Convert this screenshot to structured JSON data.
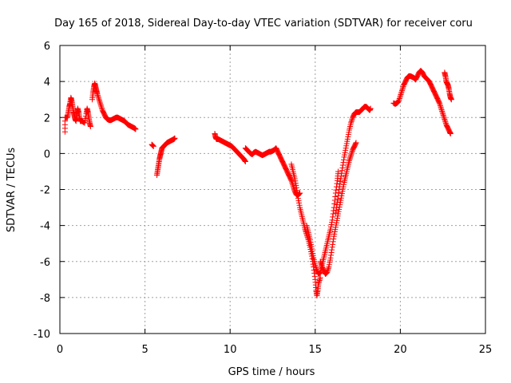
{
  "chart_data": {
    "type": "scatter",
    "title": "Day 165 of 2018, Sidereal Day-to-day VTEC variation (SDTVAR) for receiver coru",
    "xlabel": "GPS time / hours",
    "ylabel": "SDTVAR / TECUs",
    "xlim": [
      0,
      25
    ],
    "ylim": [
      -10,
      6
    ],
    "x_ticks": [
      0,
      5,
      10,
      15,
      20,
      25
    ],
    "y_ticks": [
      -10,
      -8,
      -6,
      -4,
      -2,
      0,
      2,
      4,
      6
    ],
    "x_tick_labels": [
      "0",
      "5",
      "10",
      "15",
      "20",
      "25"
    ],
    "y_tick_labels": [
      "-10",
      "-8",
      "-6",
      "-4",
      "-2",
      "0",
      "2",
      "4",
      "6"
    ],
    "grid": true,
    "legend": "none",
    "marker": "plus",
    "color": "#ff0000",
    "series": [
      {
        "segments": [
          [
            [
              0.3,
              1.2
            ],
            [
              0.3,
              2.0
            ],
            [
              0.45,
              2.0
            ],
            [
              0.5,
              2.3
            ],
            [
              0.55,
              2.6
            ],
            [
              0.6,
              2.8
            ],
            [
              0.65,
              3.1
            ],
            [
              0.7,
              2.9
            ],
            [
              0.75,
              2.6
            ],
            [
              0.8,
              2.3
            ],
            [
              0.85,
              2.1
            ],
            [
              0.9,
              1.9
            ],
            [
              0.95,
              1.8
            ],
            [
              1.0,
              2.2
            ],
            [
              1.05,
              2.5
            ],
            [
              1.1,
              2.3
            ],
            [
              1.15,
              2.0
            ],
            [
              1.2,
              1.8
            ],
            [
              1.3,
              1.8
            ],
            [
              1.45,
              1.7
            ],
            [
              1.55,
              2.2
            ],
            [
              1.6,
              2.5
            ],
            [
              1.65,
              2.3
            ],
            [
              1.7,
              2.0
            ],
            [
              1.75,
              1.7
            ],
            [
              1.8,
              1.5
            ]
          ],
          [
            [
              1.9,
              3.0
            ],
            [
              1.95,
              3.4
            ],
            [
              2.0,
              3.7
            ],
            [
              2.05,
              3.9
            ],
            [
              2.1,
              3.7
            ],
            [
              2.15,
              3.5
            ],
            [
              2.2,
              3.3
            ],
            [
              2.3,
              3.0
            ],
            [
              2.4,
              2.7
            ],
            [
              2.5,
              2.4
            ],
            [
              2.6,
              2.2
            ],
            [
              2.7,
              2.0
            ],
            [
              2.8,
              1.9
            ],
            [
              2.9,
              1.85
            ],
            [
              3.0,
              1.85
            ],
            [
              3.1,
              1.9
            ],
            [
              3.2,
              1.95
            ],
            [
              3.3,
              2.0
            ],
            [
              3.4,
              2.0
            ],
            [
              3.5,
              1.95
            ],
            [
              3.6,
              1.9
            ],
            [
              3.7,
              1.85
            ],
            [
              3.8,
              1.8
            ],
            [
              3.9,
              1.7
            ],
            [
              4.0,
              1.6
            ],
            [
              4.1,
              1.55
            ],
            [
              4.2,
              1.5
            ],
            [
              4.3,
              1.45
            ],
            [
              4.4,
              1.4
            ],
            [
              4.45,
              1.35
            ]
          ],
          [
            [
              5.4,
              0.5
            ],
            [
              5.5,
              0.4
            ]
          ],
          [
            [
              5.7,
              -1.2
            ],
            [
              5.75,
              -0.9
            ],
            [
              5.8,
              -0.6
            ],
            [
              5.85,
              -0.3
            ],
            [
              5.9,
              -0.1
            ],
            [
              5.95,
              0.1
            ],
            [
              6.0,
              0.3
            ],
            [
              6.1,
              0.4
            ],
            [
              6.2,
              0.5
            ],
            [
              6.3,
              0.6
            ],
            [
              6.4,
              0.65
            ],
            [
              6.5,
              0.7
            ],
            [
              6.6,
              0.75
            ],
            [
              6.7,
              0.8
            ],
            [
              6.75,
              0.85
            ]
          ],
          [
            [
              9.1,
              1.1
            ],
            [
              9.15,
              0.9
            ],
            [
              9.2,
              0.8
            ],
            [
              9.3,
              0.8
            ],
            [
              9.4,
              0.75
            ],
            [
              9.5,
              0.7
            ],
            [
              9.6,
              0.65
            ],
            [
              9.7,
              0.6
            ],
            [
              9.8,
              0.55
            ],
            [
              9.9,
              0.5
            ],
            [
              10.0,
              0.45
            ],
            [
              10.1,
              0.4
            ],
            [
              10.2,
              0.3
            ],
            [
              10.3,
              0.2
            ],
            [
              10.4,
              0.1
            ],
            [
              10.5,
              0.0
            ],
            [
              10.6,
              -0.1
            ],
            [
              10.7,
              -0.2
            ],
            [
              10.8,
              -0.3
            ],
            [
              10.9,
              -0.45
            ]
          ],
          [
            [
              10.9,
              0.3
            ],
            [
              11.0,
              0.2
            ],
            [
              11.1,
              0.1
            ],
            [
              11.2,
              0.0
            ],
            [
              11.3,
              -0.05
            ],
            [
              11.4,
              0.05
            ],
            [
              11.5,
              0.1
            ],
            [
              11.6,
              0.05
            ],
            [
              11.7,
              0.0
            ],
            [
              11.8,
              -0.05
            ],
            [
              11.9,
              -0.1
            ],
            [
              12.0,
              -0.05
            ],
            [
              12.1,
              0.0
            ],
            [
              12.2,
              0.05
            ],
            [
              12.3,
              0.1
            ],
            [
              12.4,
              0.1
            ],
            [
              12.5,
              0.15
            ],
            [
              12.6,
              0.2
            ],
            [
              12.7,
              0.3
            ],
            [
              12.8,
              0.1
            ],
            [
              12.9,
              -0.1
            ],
            [
              13.0,
              -0.3
            ],
            [
              13.1,
              -0.5
            ],
            [
              13.2,
              -0.7
            ],
            [
              13.3,
              -0.9
            ],
            [
              13.4,
              -1.1
            ],
            [
              13.5,
              -1.3
            ],
            [
              13.6,
              -1.5
            ],
            [
              13.7,
              -1.8
            ],
            [
              13.8,
              -2.1
            ],
            [
              13.9,
              -2.3
            ],
            [
              14.0,
              -2.3
            ],
            [
              14.1,
              -2.2
            ]
          ],
          [
            [
              13.6,
              -0.6
            ],
            [
              13.7,
              -1.0
            ],
            [
              13.8,
              -1.4
            ],
            [
              13.9,
              -1.9
            ],
            [
              14.0,
              -2.5
            ],
            [
              14.1,
              -3.0
            ],
            [
              14.2,
              -3.4
            ],
            [
              14.3,
              -3.8
            ],
            [
              14.4,
              -4.2
            ],
            [
              14.5,
              -4.5
            ],
            [
              14.6,
              -4.8
            ],
            [
              14.7,
              -5.2
            ],
            [
              14.8,
              -5.7
            ],
            [
              14.9,
              -6.3
            ],
            [
              15.0,
              -7.0
            ],
            [
              15.05,
              -7.6
            ],
            [
              15.1,
              -7.9
            ],
            [
              15.15,
              -7.6
            ],
            [
              15.2,
              -7.2
            ],
            [
              15.3,
              -6.9
            ]
          ],
          [
            [
              14.5,
              -4.0
            ],
            [
              14.6,
              -4.4
            ],
            [
              14.7,
              -4.8
            ],
            [
              14.8,
              -5.3
            ],
            [
              14.9,
              -5.8
            ],
            [
              15.0,
              -6.2
            ],
            [
              15.1,
              -6.5
            ],
            [
              15.2,
              -6.7
            ],
            [
              15.3,
              -6.6
            ],
            [
              15.4,
              -6.2
            ],
            [
              15.5,
              -5.8
            ],
            [
              15.6,
              -5.4
            ],
            [
              15.7,
              -5.0
            ],
            [
              15.8,
              -4.6
            ],
            [
              15.9,
              -4.2
            ],
            [
              16.0,
              -3.7
            ],
            [
              16.1,
              -3.0
            ],
            [
              16.2,
              -2.2
            ],
            [
              16.3,
              -1.5
            ],
            [
              16.35,
              -1.0
            ]
          ],
          [
            [
              15.3,
              -6.0
            ],
            [
              15.4,
              -6.3
            ],
            [
              15.5,
              -6.5
            ],
            [
              15.6,
              -6.7
            ],
            [
              15.7,
              -6.6
            ],
            [
              15.8,
              -6.3
            ],
            [
              15.9,
              -5.8
            ],
            [
              16.0,
              -5.2
            ],
            [
              16.1,
              -4.6
            ],
            [
              16.2,
              -4.1
            ],
            [
              16.3,
              -3.6
            ],
            [
              16.4,
              -3.1
            ],
            [
              16.5,
              -2.6
            ],
            [
              16.6,
              -2.1
            ],
            [
              16.7,
              -1.6
            ],
            [
              16.8,
              -1.2
            ],
            [
              16.9,
              -0.8
            ],
            [
              17.0,
              -0.4
            ],
            [
              17.1,
              -0.1
            ],
            [
              17.2,
              0.2
            ],
            [
              17.3,
              0.4
            ],
            [
              17.4,
              0.6
            ]
          ],
          [
            [
              16.2,
              -3.3
            ],
            [
              16.3,
              -2.7
            ],
            [
              16.4,
              -2.0
            ],
            [
              16.5,
              -1.4
            ],
            [
              16.6,
              -0.8
            ],
            [
              16.7,
              -0.2
            ],
            [
              16.8,
              0.3
            ],
            [
              16.9,
              0.8
            ],
            [
              17.0,
              1.3
            ],
            [
              17.1,
              1.7
            ],
            [
              17.2,
              2.0
            ],
            [
              17.3,
              2.2
            ],
            [
              17.4,
              2.3
            ],
            [
              17.5,
              2.3
            ],
            [
              17.6,
              2.3
            ],
            [
              17.7,
              2.4
            ],
            [
              17.8,
              2.5
            ],
            [
              17.9,
              2.6
            ],
            [
              18.0,
              2.6
            ],
            [
              18.1,
              2.5
            ],
            [
              18.2,
              2.4
            ],
            [
              18.25,
              2.5
            ]
          ],
          [
            [
              19.6,
              2.8
            ],
            [
              19.7,
              2.75
            ],
            [
              19.8,
              2.8
            ],
            [
              19.9,
              2.9
            ],
            [
              20.0,
              3.2
            ],
            [
              20.1,
              3.5
            ],
            [
              20.2,
              3.8
            ],
            [
              20.3,
              4.0
            ],
            [
              20.4,
              4.2
            ],
            [
              20.5,
              4.3
            ],
            [
              20.6,
              4.3
            ],
            [
              20.7,
              4.25
            ],
            [
              20.8,
              4.2
            ],
            [
              20.9,
              4.1
            ],
            [
              21.0,
              4.3
            ],
            [
              21.1,
              4.5
            ],
            [
              21.2,
              4.6
            ],
            [
              21.3,
              4.5
            ],
            [
              21.4,
              4.3
            ],
            [
              21.5,
              4.2
            ],
            [
              21.6,
              4.1
            ],
            [
              21.7,
              4.0
            ],
            [
              21.8,
              3.8
            ],
            [
              21.9,
              3.6
            ],
            [
              22.0,
              3.4
            ],
            [
              22.1,
              3.2
            ],
            [
              22.2,
              3.0
            ],
            [
              22.3,
              2.8
            ],
            [
              22.4,
              2.5
            ],
            [
              22.5,
              2.2
            ],
            [
              22.6,
              1.9
            ],
            [
              22.7,
              1.6
            ],
            [
              22.8,
              1.4
            ],
            [
              22.9,
              1.2
            ],
            [
              22.95,
              1.1
            ]
          ],
          [
            [
              22.6,
              4.5
            ],
            [
              22.65,
              4.3
            ],
            [
              22.7,
              4.0
            ],
            [
              22.75,
              3.9
            ],
            [
              22.8,
              3.8
            ],
            [
              22.85,
              3.6
            ],
            [
              22.9,
              3.3
            ],
            [
              22.95,
              3.1
            ],
            [
              23.0,
              3.0
            ]
          ]
        ]
      }
    ]
  }
}
